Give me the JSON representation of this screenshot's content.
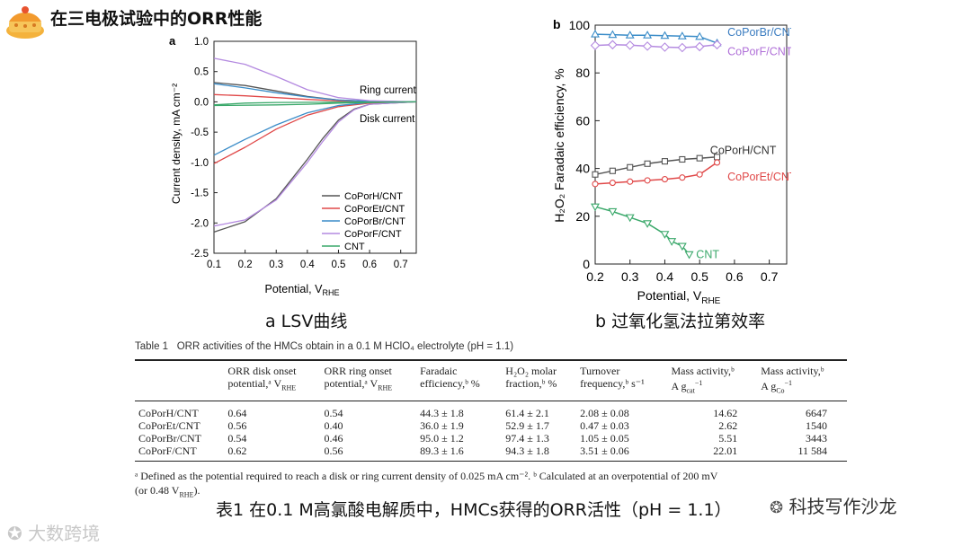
{
  "header": {
    "title": "在三电极试验中的ORR性能"
  },
  "lsv": {
    "panel_letter": "a",
    "ylabel": "Current density, mA cm⁻²",
    "xlabel_main": "Potential, V",
    "xlabel_sub": "RHE",
    "ring_label": "Ring current",
    "disk_label": "Disk current",
    "caption": "a  LSV曲线",
    "chart_data": {
      "type": "line",
      "x_range": [
        0.1,
        0.75
      ],
      "y_range": [
        -2.5,
        1.0
      ],
      "xticks": [
        "0.1",
        "0.2",
        "0.3",
        "0.4",
        "0.5",
        "0.6",
        "0.7"
      ],
      "yticks": [
        "1.0",
        "0.5",
        "0.0",
        "-0.5",
        "-1.0",
        "-1.5",
        "-2.0",
        "-2.5"
      ],
      "series": [
        {
          "name": "CoPorH/CNT",
          "color": "#555555",
          "ring": [
            [
              0.1,
              0.32
            ],
            [
              0.2,
              0.27
            ],
            [
              0.3,
              0.18
            ],
            [
              0.4,
              0.09
            ],
            [
              0.5,
              0.03
            ],
            [
              0.6,
              0.01
            ],
            [
              0.75,
              0.0
            ]
          ],
          "disk": [
            [
              0.1,
              -2.15
            ],
            [
              0.2,
              -1.98
            ],
            [
              0.3,
              -1.6
            ],
            [
              0.4,
              -0.95
            ],
            [
              0.45,
              -0.6
            ],
            [
              0.5,
              -0.3
            ],
            [
              0.55,
              -0.12
            ],
            [
              0.6,
              -0.04
            ],
            [
              0.75,
              0.0
            ]
          ]
        },
        {
          "name": "CoPorEt/CNT",
          "color": "#e04848",
          "ring": [
            [
              0.1,
              0.12
            ],
            [
              0.2,
              0.1
            ],
            [
              0.3,
              0.07
            ],
            [
              0.4,
              0.04
            ],
            [
              0.5,
              0.015
            ],
            [
              0.75,
              0.0
            ]
          ],
          "disk": [
            [
              0.1,
              -1.02
            ],
            [
              0.2,
              -0.75
            ],
            [
              0.3,
              -0.45
            ],
            [
              0.4,
              -0.22
            ],
            [
              0.5,
              -0.08
            ],
            [
              0.6,
              -0.02
            ],
            [
              0.75,
              0.0
            ]
          ]
        },
        {
          "name": "CoPorBr/CNT",
          "color": "#3a8cc8",
          "ring": [
            [
              0.1,
              0.3
            ],
            [
              0.2,
              0.23
            ],
            [
              0.3,
              0.15
            ],
            [
              0.4,
              0.08
            ],
            [
              0.5,
              0.03
            ],
            [
              0.6,
              0.01
            ],
            [
              0.75,
              0.0
            ]
          ],
          "disk": [
            [
              0.1,
              -0.88
            ],
            [
              0.2,
              -0.62
            ],
            [
              0.3,
              -0.38
            ],
            [
              0.4,
              -0.18
            ],
            [
              0.5,
              -0.06
            ],
            [
              0.6,
              -0.01
            ],
            [
              0.75,
              0.0
            ]
          ]
        },
        {
          "name": "CoPorF/CNT",
          "color": "#b48ae0",
          "ring": [
            [
              0.1,
              0.72
            ],
            [
              0.2,
              0.62
            ],
            [
              0.3,
              0.42
            ],
            [
              0.4,
              0.2
            ],
            [
              0.5,
              0.07
            ],
            [
              0.6,
              0.02
            ],
            [
              0.75,
              0.0
            ]
          ],
          "disk": [
            [
              0.1,
              -2.05
            ],
            [
              0.2,
              -1.95
            ],
            [
              0.3,
              -1.62
            ],
            [
              0.4,
              -1.0
            ],
            [
              0.45,
              -0.65
            ],
            [
              0.5,
              -0.33
            ],
            [
              0.55,
              -0.13
            ],
            [
              0.6,
              -0.04
            ],
            [
              0.75,
              0.0
            ]
          ]
        },
        {
          "name": "CNT",
          "color": "#3aa86a",
          "ring": [
            [
              0.1,
              -0.05
            ],
            [
              0.2,
              -0.02
            ],
            [
              0.3,
              -0.01
            ],
            [
              0.75,
              0.0
            ]
          ],
          "disk": [
            [
              0.1,
              -0.06
            ],
            [
              0.3,
              -0.05
            ],
            [
              0.4,
              -0.04
            ],
            [
              0.5,
              -0.02
            ],
            [
              0.6,
              -0.01
            ],
            [
              0.75,
              0.0
            ]
          ]
        }
      ]
    }
  },
  "fe": {
    "panel_letter": "b",
    "ylabel": "H₂O₂ Faradaic efficiency, %",
    "xlabel_main": "Potential, V",
    "xlabel_sub": "RHE",
    "caption": "b  过氧化氢法拉第效率",
    "chart_data": {
      "type": "line",
      "x_range": [
        0.2,
        0.75
      ],
      "y_range": [
        0,
        100
      ],
      "xticks": [
        "0.2",
        "0.3",
        "0.4",
        "0.5",
        "0.6",
        "0.7"
      ],
      "yticks": [
        "100",
        "80",
        "60",
        "40",
        "20",
        "0"
      ],
      "series": [
        {
          "name": "CoPorBr/CNT",
          "color": "#3a8cc8",
          "label_color": "#3a7cc0",
          "marker": "triangle-up",
          "points": [
            [
              0.2,
              96.2
            ],
            [
              0.25,
              96
            ],
            [
              0.3,
              95.8
            ],
            [
              0.35,
              95.8
            ],
            [
              0.4,
              95.6
            ],
            [
              0.45,
              95.4
            ],
            [
              0.5,
              95.2
            ],
            [
              0.55,
              92.5
            ]
          ]
        },
        {
          "name": "CoPorF/CNT",
          "color": "#b48ae0",
          "label_color": "#b070d8",
          "marker": "diamond",
          "points": [
            [
              0.2,
              91.5
            ],
            [
              0.25,
              91.8
            ],
            [
              0.3,
              91.6
            ],
            [
              0.35,
              91.2
            ],
            [
              0.4,
              90.8
            ],
            [
              0.45,
              90.6
            ],
            [
              0.5,
              91
            ],
            [
              0.55,
              91.8
            ]
          ]
        },
        {
          "name": "CoPorH/CNT",
          "color": "#555555",
          "label_color": "#333333",
          "marker": "square",
          "points": [
            [
              0.2,
              37.5
            ],
            [
              0.25,
              39
            ],
            [
              0.3,
              40.5
            ],
            [
              0.35,
              42
            ],
            [
              0.4,
              43
            ],
            [
              0.45,
              43.8
            ],
            [
              0.5,
              44.3
            ],
            [
              0.55,
              44.8
            ]
          ]
        },
        {
          "name": "CoPorEt/CNT",
          "color": "#e04848",
          "label_color": "#e04848",
          "marker": "circle",
          "points": [
            [
              0.2,
              33.5
            ],
            [
              0.25,
              34
            ],
            [
              0.3,
              34.5
            ],
            [
              0.35,
              35
            ],
            [
              0.4,
              35.5
            ],
            [
              0.45,
              36.2
            ],
            [
              0.5,
              37.5
            ],
            [
              0.55,
              42.5
            ]
          ]
        },
        {
          "name": "CNT",
          "color": "#3aa86a",
          "label_color": "#3aa86a",
          "marker": "triangle-down",
          "points": [
            [
              0.2,
              24
            ],
            [
              0.25,
              22
            ],
            [
              0.3,
              19.5
            ],
            [
              0.35,
              17
            ],
            [
              0.4,
              12.5
            ],
            [
              0.42,
              9.5
            ],
            [
              0.45,
              7.5
            ],
            [
              0.47,
              4
            ]
          ]
        }
      ]
    }
  },
  "table": {
    "caption_label": "Table 1",
    "caption_text": "ORR activities of the HMCs obtain in a 0.1 M HClO₄ electrolyte (pH = 1.1)",
    "headers": [
      {
        "l1": "",
        "l2": ""
      },
      {
        "l1": "ORR disk onset",
        "l2": "potential,ᵃ V",
        "l2sub": "RHE"
      },
      {
        "l1": "ORR ring onset",
        "l2": "potential,ᵃ V",
        "l2sub": "RHE"
      },
      {
        "l1": "Faradaic",
        "l2": "efficiency,ᵇ %"
      },
      {
        "l1": "H₂O₂ molar",
        "l2": "fraction,ᵇ %"
      },
      {
        "l1": "Turnover",
        "l2": "frequency,ᵇ s⁻¹"
      },
      {
        "l1": "Mass activity,ᵇ",
        "l2": "A g",
        "l2sub": "cat",
        "l2post": "⁻¹"
      },
      {
        "l1": "Mass activity,ᵇ",
        "l2": "A g",
        "l2sub": "Co",
        "l2post": "⁻¹"
      }
    ],
    "rows": [
      [
        "CoPorH/CNT",
        "0.64",
        "0.54",
        "44.3 ± 1.8",
        "61.4 ± 2.1",
        "2.08 ± 0.08",
        "14.62",
        "6647"
      ],
      [
        "CoPorEt/CNT",
        "0.56",
        "0.40",
        "36.0 ± 1.9",
        "52.9 ± 1.7",
        "0.47 ± 0.03",
        "2.62",
        "1540"
      ],
      [
        "CoPorBr/CNT",
        "0.54",
        "0.46",
        "95.0 ± 1.2",
        "97.4 ± 1.3",
        "1.05 ± 0.05",
        "5.51",
        "3443"
      ],
      [
        "CoPorF/CNT",
        "0.62",
        "0.56",
        "89.3 ± 1.6",
        "94.3 ± 1.8",
        "3.51 ± 0.06",
        "22.01",
        "11 584"
      ]
    ],
    "footnote_line1": "ᵃ Defined as the potential required to reach a disk or ring current density of 0.025 mA cm⁻². ᵇ Calculated at an overpotential of 200 mV",
    "footnote_line2a": "(or 0.48 V",
    "footnote_line2sub": "RHE",
    "footnote_line2b": ").",
    "bottom_caption": "表1  在0.1 M高氯酸电解质中，HMCs获得的ORR活性（pH = 1.1）"
  },
  "watermarks": {
    "right": "科技写作沙龙",
    "left": "大数跨境"
  }
}
